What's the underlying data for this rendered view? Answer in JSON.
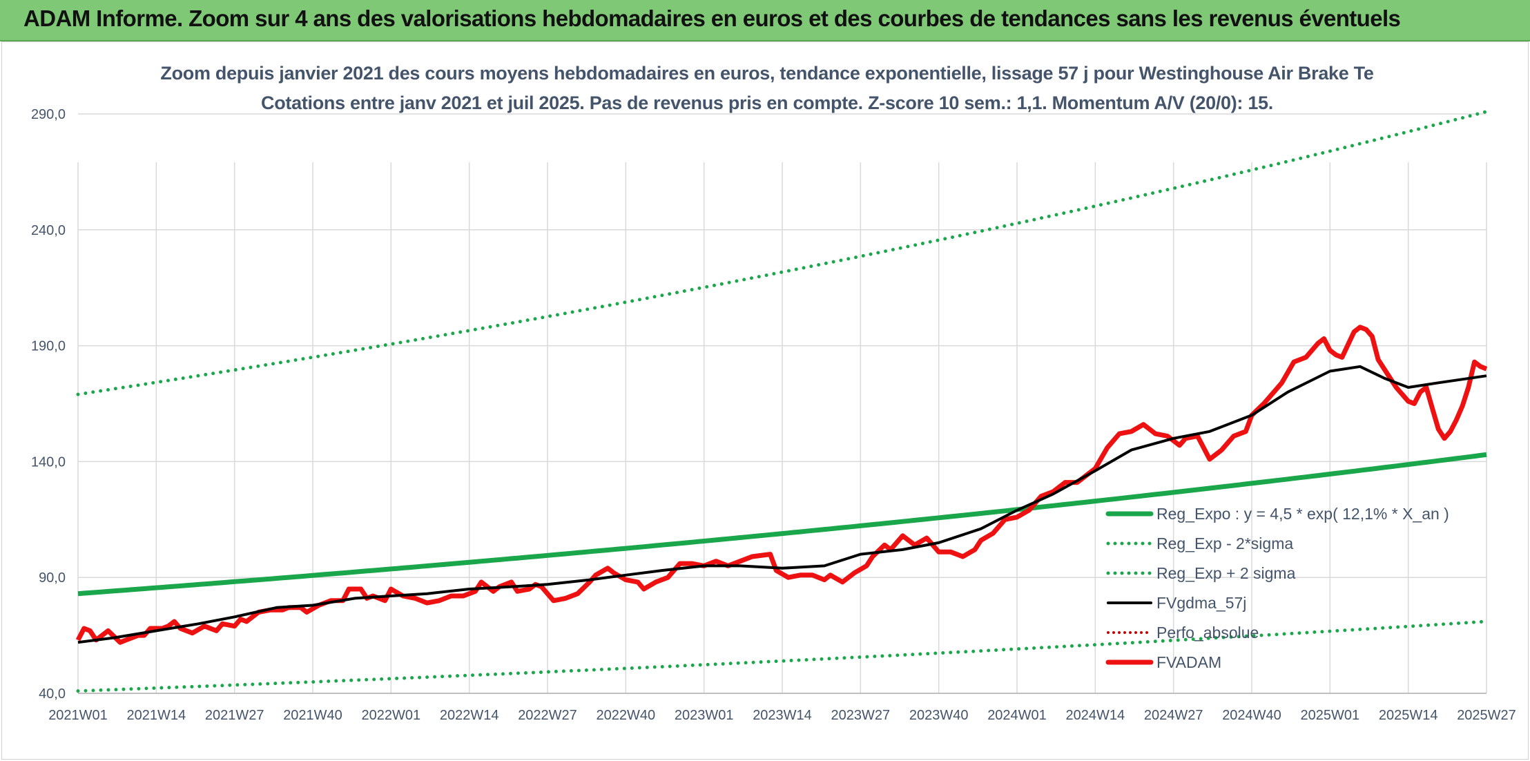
{
  "banner": {
    "title": "ADAM Informe. Zoom sur 4 ans des valorisations hebdomadaires en euros et des courbes de tendances sans les revenus éventuels"
  },
  "colors": {
    "banner_bg": "#7ec876",
    "trend": "#1aa64a",
    "moving_avg": "#000000",
    "price": "#ee1111",
    "perf": "#cc0000",
    "grid": "#d9d9d9",
    "text": "#44546a"
  },
  "chart_data": {
    "type": "line",
    "title": "Zoom depuis janvier 2021 des cours moyens hebdomadaires en euros, tendance exponentielle, lissage 57 j pour Westinghouse Air Brake Te",
    "subtitle": "Cotations entre janv 2021 et juil 2025. Pas de revenus pris en compte. Z-score 10 sem.: 1,1. Momentum A/V (20/0): 15.",
    "xlabel": "",
    "ylabel": "",
    "ylim": [
      40,
      290
    ],
    "yticks": [
      "40,0",
      "90,0",
      "140,0",
      "190,0",
      "240,0",
      "290,0"
    ],
    "ytick_values": [
      40,
      90,
      140,
      190,
      240,
      290
    ],
    "x_tick_labels": [
      "2021W01",
      "2021W14",
      "2021W27",
      "2021W40",
      "2022W01",
      "2022W14",
      "2022W27",
      "2022W40",
      "2023W01",
      "2023W14",
      "2023W27",
      "2023W40",
      "2024W01",
      "2024W14",
      "2024W27",
      "2024W40",
      "2025W01",
      "2025W14",
      "2025W27"
    ],
    "x_tick_index": [
      0,
      13,
      26,
      39,
      52,
      65,
      78,
      91,
      104,
      117,
      130,
      143,
      156,
      169,
      182,
      195,
      208,
      221,
      234
    ],
    "grid": true,
    "legend_position": "bottom-right",
    "legend": [
      {
        "name": "Reg_Expo : y = 4,5 * exp( 12,1% *  X_an )",
        "style": "solid-green-thick"
      },
      {
        "name": "Reg_Exp - 2*sigma",
        "style": "dotted-green"
      },
      {
        "name": "Reg_Exp + 2 sigma",
        "style": "dotted-green"
      },
      {
        "name": "FVgdma_57j",
        "style": "solid-black"
      },
      {
        "name": "Perfo_absolue",
        "style": "dotted-red"
      },
      {
        "name": "FVADAM",
        "style": "solid-red-thick"
      }
    ],
    "n_points": 235,
    "series_reg_expo": [
      [
        0,
        83
      ],
      [
        234,
        143
      ]
    ],
    "series_reg_minus": [
      [
        0,
        41
      ],
      [
        234,
        71
      ]
    ],
    "series_reg_plus": [
      [
        0,
        169
      ],
      [
        234,
        291
      ]
    ],
    "series_fvgdma": [
      [
        0,
        62
      ],
      [
        6,
        64
      ],
      [
        13,
        67
      ],
      [
        20,
        70
      ],
      [
        26,
        73
      ],
      [
        33,
        77
      ],
      [
        39,
        78
      ],
      [
        46,
        81
      ],
      [
        52,
        82
      ],
      [
        58,
        83
      ],
      [
        65,
        85
      ],
      [
        72,
        86
      ],
      [
        78,
        87
      ],
      [
        85,
        89
      ],
      [
        91,
        91
      ],
      [
        97,
        93
      ],
      [
        104,
        95
      ],
      [
        110,
        95
      ],
      [
        117,
        94
      ],
      [
        124,
        95
      ],
      [
        130,
        100
      ],
      [
        137,
        102
      ],
      [
        143,
        105
      ],
      [
        150,
        111
      ],
      [
        156,
        119
      ],
      [
        162,
        126
      ],
      [
        169,
        136
      ],
      [
        175,
        145
      ],
      [
        182,
        150
      ],
      [
        188,
        153
      ],
      [
        195,
        160
      ],
      [
        201,
        170
      ],
      [
        208,
        179
      ],
      [
        213,
        181
      ],
      [
        217,
        176
      ],
      [
        221,
        172
      ],
      [
        226,
        174
      ],
      [
        234,
        177
      ]
    ],
    "series_fvadam": [
      [
        0,
        63
      ],
      [
        1,
        68
      ],
      [
        2,
        67
      ],
      [
        3,
        63
      ],
      [
        5,
        67
      ],
      [
        7,
        62
      ],
      [
        8,
        63
      ],
      [
        10,
        65
      ],
      [
        11,
        65
      ],
      [
        12,
        68
      ],
      [
        14,
        68
      ],
      [
        15,
        69
      ],
      [
        16,
        71
      ],
      [
        17,
        68
      ],
      [
        19,
        66
      ],
      [
        21,
        69
      ],
      [
        23,
        67
      ],
      [
        24,
        70
      ],
      [
        26,
        69
      ],
      [
        27,
        72
      ],
      [
        28,
        71
      ],
      [
        30,
        75
      ],
      [
        32,
        76
      ],
      [
        34,
        76
      ],
      [
        35,
        77
      ],
      [
        37,
        77
      ],
      [
        38,
        75
      ],
      [
        40,
        78
      ],
      [
        42,
        80
      ],
      [
        44,
        80
      ],
      [
        45,
        85
      ],
      [
        47,
        85
      ],
      [
        48,
        81
      ],
      [
        49,
        82
      ],
      [
        51,
        80
      ],
      [
        52,
        85
      ],
      [
        54,
        82
      ],
      [
        56,
        81
      ],
      [
        58,
        79
      ],
      [
        60,
        80
      ],
      [
        62,
        82
      ],
      [
        64,
        82
      ],
      [
        66,
        84
      ],
      [
        67,
        88
      ],
      [
        69,
        84
      ],
      [
        70,
        86
      ],
      [
        72,
        88
      ],
      [
        73,
        84
      ],
      [
        75,
        85
      ],
      [
        76,
        87
      ],
      [
        77,
        86
      ],
      [
        79,
        80
      ],
      [
        81,
        81
      ],
      [
        83,
        83
      ],
      [
        85,
        88
      ],
      [
        86,
        91
      ],
      [
        88,
        94
      ],
      [
        89,
        92
      ],
      [
        91,
        89
      ],
      [
        93,
        88
      ],
      [
        94,
        85
      ],
      [
        96,
        88
      ],
      [
        98,
        90
      ],
      [
        100,
        96
      ],
      [
        102,
        96
      ],
      [
        104,
        95
      ],
      [
        106,
        97
      ],
      [
        108,
        95
      ],
      [
        110,
        97
      ],
      [
        112,
        99
      ],
      [
        115,
        100
      ],
      [
        116,
        93
      ],
      [
        118,
        90
      ],
      [
        120,
        91
      ],
      [
        122,
        91
      ],
      [
        124,
        89
      ],
      [
        125,
        91
      ],
      [
        127,
        88
      ],
      [
        129,
        92
      ],
      [
        131,
        95
      ],
      [
        132,
        99
      ],
      [
        134,
        104
      ],
      [
        135,
        102
      ],
      [
        137,
        108
      ],
      [
        139,
        104
      ],
      [
        141,
        107
      ],
      [
        143,
        101
      ],
      [
        145,
        101
      ],
      [
        147,
        99
      ],
      [
        149,
        102
      ],
      [
        150,
        106
      ],
      [
        152,
        109
      ],
      [
        154,
        115
      ],
      [
        156,
        116
      ],
      [
        158,
        119
      ],
      [
        160,
        125
      ],
      [
        162,
        127
      ],
      [
        164,
        131
      ],
      [
        166,
        131
      ],
      [
        168,
        135
      ],
      [
        169,
        137
      ],
      [
        171,
        146
      ],
      [
        173,
        152
      ],
      [
        175,
        153
      ],
      [
        177,
        156
      ],
      [
        178,
        154
      ],
      [
        179,
        152
      ],
      [
        181,
        151
      ],
      [
        183,
        147
      ],
      [
        184,
        150
      ],
      [
        186,
        151
      ],
      [
        188,
        141
      ],
      [
        190,
        145
      ],
      [
        192,
        151
      ],
      [
        194,
        153
      ],
      [
        195,
        160
      ],
      [
        197,
        165
      ],
      [
        199,
        171
      ],
      [
        200,
        174
      ],
      [
        202,
        183
      ],
      [
        204,
        185
      ],
      [
        206,
        191
      ],
      [
        207,
        193
      ],
      [
        208,
        188
      ],
      [
        209,
        186
      ],
      [
        210,
        185
      ],
      [
        212,
        196
      ],
      [
        213,
        198
      ],
      [
        214,
        197
      ],
      [
        215,
        194
      ],
      [
        216,
        184
      ],
      [
        217,
        180
      ],
      [
        219,
        172
      ],
      [
        221,
        166
      ],
      [
        222,
        165
      ],
      [
        223,
        170
      ],
      [
        224,
        172
      ],
      [
        225,
        163
      ],
      [
        226,
        154
      ],
      [
        227,
        150
      ],
      [
        228,
        153
      ],
      [
        229,
        158
      ],
      [
        230,
        164
      ],
      [
        231,
        172
      ],
      [
        232,
        183
      ],
      [
        233,
        181
      ],
      [
        234,
        180
      ]
    ]
  }
}
